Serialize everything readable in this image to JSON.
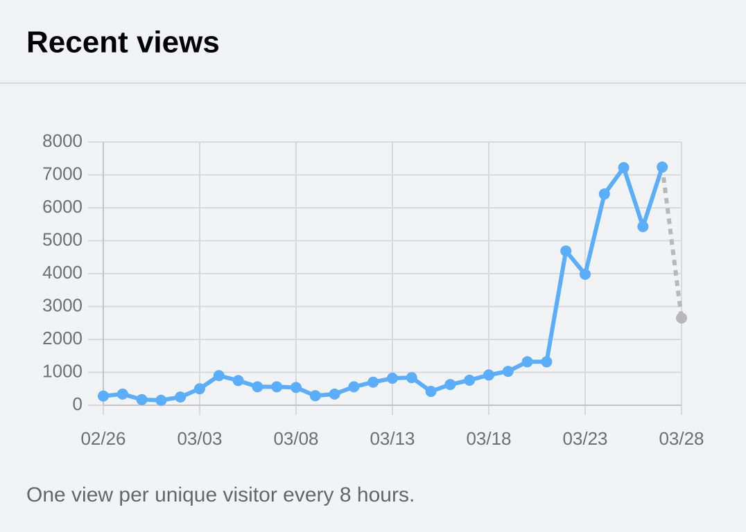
{
  "header": {
    "title": "Recent views"
  },
  "chart_data": {
    "type": "line",
    "categories": [
      "02/26",
      null,
      null,
      null,
      null,
      "03/03",
      null,
      null,
      null,
      null,
      "03/08",
      null,
      null,
      null,
      null,
      "03/13",
      null,
      null,
      null,
      null,
      "03/18",
      null,
      null,
      null,
      null,
      "03/23",
      null,
      null,
      null,
      null,
      "03/28"
    ],
    "series": [
      {
        "color": "#5aaefc",
        "values": [
          280,
          340,
          170,
          150,
          250,
          500,
          900,
          750,
          560,
          560,
          540,
          290,
          340,
          560,
          700,
          820,
          840,
          420,
          630,
          760,
          920,
          1030,
          1320,
          1320,
          4690,
          3980,
          6420,
          7220,
          5430,
          7240,
          2650
        ]
      }
    ],
    "partial_color": "#b8b8b8",
    "ylim": [
      0,
      8000
    ],
    "yticks": [
      0,
      1000,
      2000,
      3000,
      4000,
      5000,
      6000,
      7000,
      8000
    ],
    "grid": true
  },
  "footer": {
    "note": "One view per unique visitor every 8 hours."
  }
}
